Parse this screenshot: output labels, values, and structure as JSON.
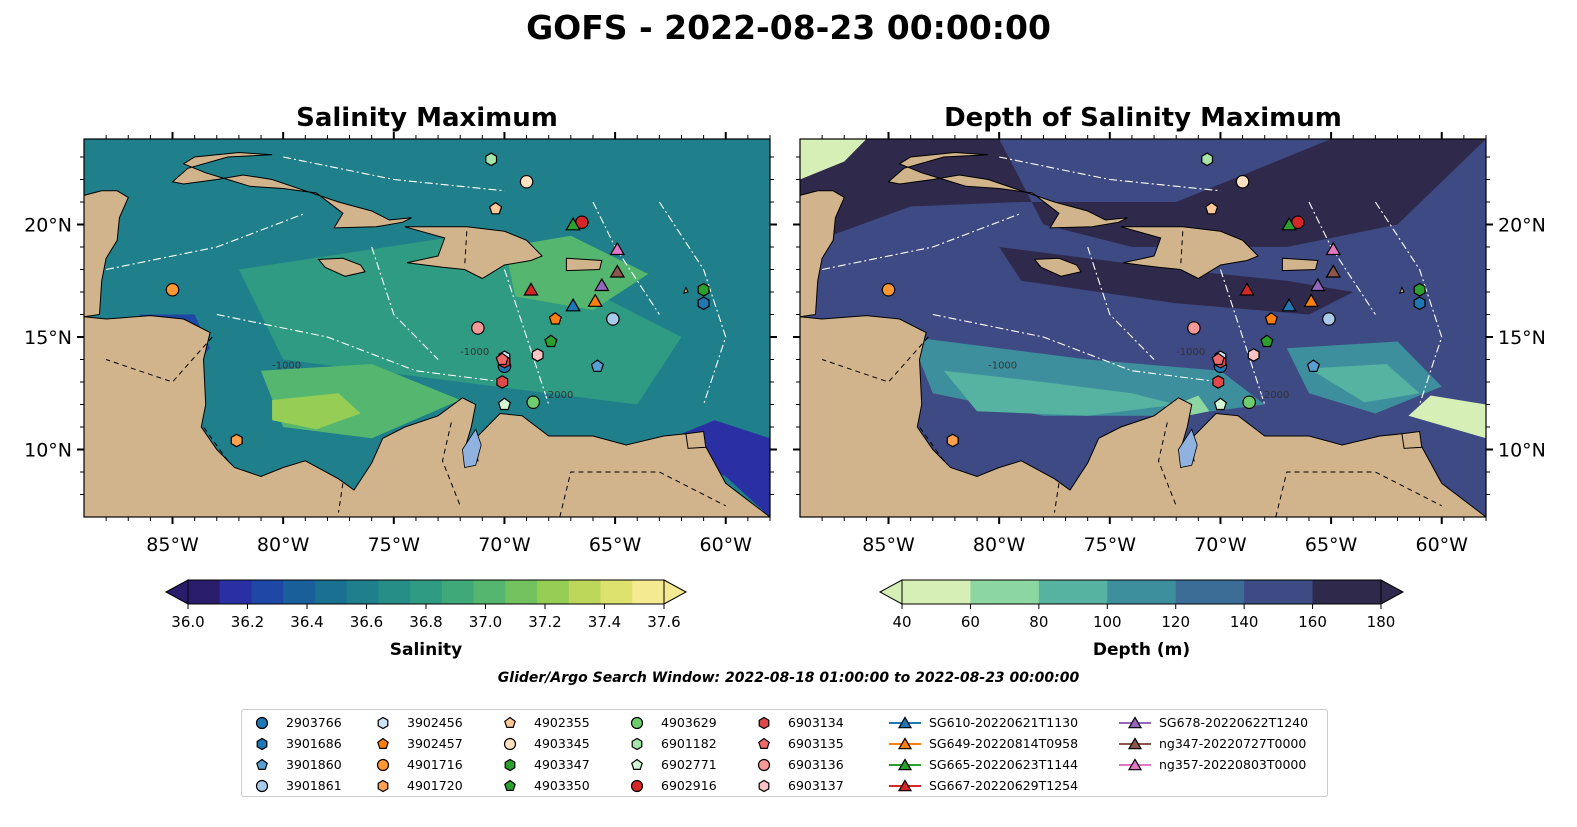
{
  "title": "GOFS - 2022-08-23 00:00:00",
  "panels": [
    {
      "title": "Salinity Maximum",
      "colorbar_label": "Salinity",
      "ticks": [
        "36.0",
        "36.2",
        "36.4",
        "36.6",
        "36.8",
        "37.0",
        "37.2",
        "37.4",
        "37.6"
      ],
      "colors": [
        "#2a1d6b",
        "#2a2fa3",
        "#1f47a6",
        "#19609a",
        "#1a7090",
        "#1f7f8a",
        "#268e86",
        "#2f9b82",
        "#3fa97a",
        "#55b76f",
        "#72c35f",
        "#95cd55",
        "#bcd75a",
        "#dde16e",
        "#f4ea92"
      ]
    },
    {
      "title": "Depth of Salinity Maximum",
      "colorbar_label": "Depth (m)",
      "ticks": [
        "40",
        "60",
        "80",
        "100",
        "120",
        "140",
        "160",
        "180"
      ],
      "colors": [
        "#d6efb6",
        "#8cd6a1",
        "#56b2a1",
        "#3e8f9d",
        "#3b6d96",
        "#3e4a83",
        "#2f2a4c"
      ]
    }
  ],
  "axes": {
    "lon_labels": [
      "85°W",
      "80°W",
      "75°W",
      "70°W",
      "65°W",
      "60°W"
    ],
    "lat_labels": [
      "20°N",
      "15°N",
      "10°N"
    ]
  },
  "contour_labels": [
    "-1000",
    "-2000",
    "-1000"
  ],
  "search_window": "Glider/Argo Search Window: 2022-08-18 01:00:00 to 2022-08-23 00:00:00",
  "map_colors": {
    "land": "#d2b48c",
    "lakes": "#8fb2e0"
  },
  "legend": [
    {
      "label": "2903766",
      "marker": "circle",
      "color": "#1f77b4"
    },
    {
      "label": "3901686",
      "marker": "hexagon",
      "color": "#1f77b4"
    },
    {
      "label": "3901860",
      "marker": "pentagon",
      "color": "#5a9fd4"
    },
    {
      "label": "3901861",
      "marker": "circle",
      "color": "#a8cbea"
    },
    {
      "label": "3902456",
      "marker": "hexagon",
      "color": "#cfe3f7"
    },
    {
      "label": "3902457",
      "marker": "pentagon",
      "color": "#ff7f0e"
    },
    {
      "label": "4901716",
      "marker": "circle",
      "color": "#ff9833"
    },
    {
      "label": "4901720",
      "marker": "hexagon",
      "color": "#ffa14f"
    },
    {
      "label": "4902355",
      "marker": "pentagon",
      "color": "#ffc899"
    },
    {
      "label": "4903345",
      "marker": "circle",
      "color": "#ffe0c0"
    },
    {
      "label": "4903347",
      "marker": "hexagon",
      "color": "#2ca02c"
    },
    {
      "label": "4903350",
      "marker": "pentagon",
      "color": "#2ca02c"
    },
    {
      "label": "4903629",
      "marker": "circle",
      "color": "#6fcc6f"
    },
    {
      "label": "6901182",
      "marker": "hexagon",
      "color": "#a6e6a6"
    },
    {
      "label": "6902771",
      "marker": "pentagon",
      "color": "#d4f7d4"
    },
    {
      "label": "6902916",
      "marker": "circle",
      "color": "#d62728"
    },
    {
      "label": "6903134",
      "marker": "hexagon",
      "color": "#e0484a"
    },
    {
      "label": "6903135",
      "marker": "pentagon",
      "color": "#ef6b6b"
    },
    {
      "label": "6903136",
      "marker": "circle",
      "color": "#f79999"
    },
    {
      "label": "6903137",
      "marker": "hexagon",
      "color": "#fbc3c3"
    },
    {
      "label": "SG610-20220621T1130",
      "marker": "triangle",
      "color": "#1f77b4"
    },
    {
      "label": "SG649-20220814T0958",
      "marker": "triangle",
      "color": "#ff7f0e"
    },
    {
      "label": "SG665-20220623T1144",
      "marker": "triangle",
      "color": "#2ca02c"
    },
    {
      "label": "SG667-20220629T1254",
      "marker": "triangle",
      "color": "#d62728"
    },
    {
      "label": "SG678-20220622T1240",
      "marker": "triangle",
      "color": "#9467bd"
    },
    {
      "label": "ng347-20220727T0000",
      "marker": "triangle",
      "color": "#8c564b"
    },
    {
      "label": "ng357-20220803T0000",
      "marker": "triangle",
      "color": "#e377c2"
    }
  ],
  "observations": [
    {
      "id": "2903766",
      "lon": -70.0,
      "lat": 13.7
    },
    {
      "id": "3901686",
      "lon": -61.0,
      "lat": 16.5
    },
    {
      "id": "3901860",
      "lon": -65.8,
      "lat": 13.7
    },
    {
      "id": "3901861",
      "lon": -65.1,
      "lat": 15.8
    },
    {
      "id": "3902456",
      "lon": -70.0,
      "lat": 14.1
    },
    {
      "id": "3902457",
      "lon": -67.7,
      "lat": 15.8
    },
    {
      "id": "4901716",
      "lon": -85.0,
      "lat": 17.1
    },
    {
      "id": "4901720",
      "lon": -82.1,
      "lat": 10.4
    },
    {
      "id": "4902355",
      "lon": -70.4,
      "lat": 20.7
    },
    {
      "id": "4903345",
      "lon": -69.0,
      "lat": 21.9
    },
    {
      "id": "4903347",
      "lon": -61.0,
      "lat": 17.1
    },
    {
      "id": "4903350",
      "lon": -67.9,
      "lat": 14.8
    },
    {
      "id": "4903629",
      "lon": -68.7,
      "lat": 12.1
    },
    {
      "id": "6901182",
      "lon": -70.6,
      "lat": 22.9
    },
    {
      "id": "6902771",
      "lon": -70.0,
      "lat": 12.0
    },
    {
      "id": "6902916",
      "lon": -66.5,
      "lat": 20.1
    },
    {
      "id": "6903134",
      "lon": -70.0,
      "lat": 13.9
    },
    {
      "id": "6903135",
      "lon": -70.1,
      "lat": 14.0
    },
    {
      "id": "6903136",
      "lon": -71.2,
      "lat": 15.4
    },
    {
      "id": "6903137",
      "lon": -68.5,
      "lat": 14.2
    },
    {
      "id": "6903134b",
      "lon": -70.1,
      "lat": 13.0
    },
    {
      "id": "SG610-20220621T1130",
      "lon": -66.9,
      "lat": 16.4
    },
    {
      "id": "SG649-20220814T0958",
      "lon": -65.9,
      "lat": 16.6
    },
    {
      "id": "SG665-20220623T1144",
      "lon": -66.9,
      "lat": 20.0
    },
    {
      "id": "SG667-20220629T1254",
      "lon": -68.8,
      "lat": 17.1
    },
    {
      "id": "SG678-20220622T1240",
      "lon": -65.6,
      "lat": 17.3
    },
    {
      "id": "ng347-20220727T0000",
      "lon": -64.9,
      "lat": 17.9
    },
    {
      "id": "ng357-20220803T0000",
      "lon": -64.9,
      "lat": 18.9
    }
  ]
}
